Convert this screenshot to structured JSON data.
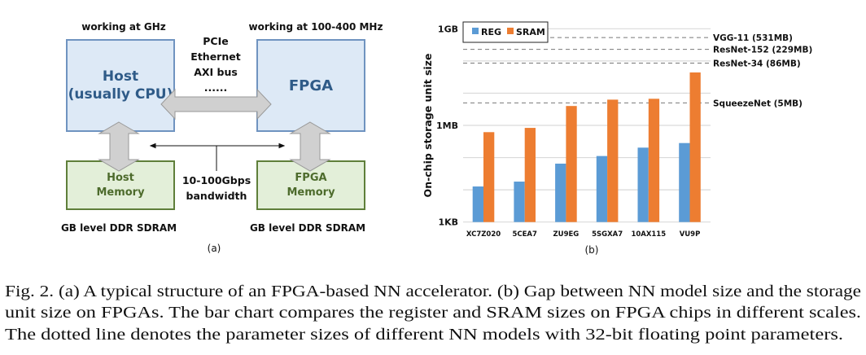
{
  "diagram": {
    "host_freq": "working at GHz",
    "fpga_freq": "working at 100-400 MHz",
    "host_label": [
      "Host",
      "(usually CPU)"
    ],
    "fpga_label": "FPGA",
    "host_memory": [
      "Host",
      "Memory"
    ],
    "fpga_memory": [
      "FPGA",
      "Memory"
    ],
    "interfaces": [
      "PCIe",
      "Ethernet",
      "AXI bus",
      "......"
    ],
    "bandwidth": [
      "10-100Gbps",
      "bandwidth"
    ],
    "host_dram": "GB level DDR SDRAM",
    "fpga_dram": "GB level DDR SDRAM",
    "sublabel": "(a)",
    "colors": {
      "processor_fill": "#dde9f6",
      "processor_border": "#6f93c0",
      "memory_fill": "#e3efd9",
      "memory_border": "#5f7f3a",
      "arrow": "#d0d0d0"
    }
  },
  "chart_data": {
    "type": "bar",
    "ylabel": "On-chip storage unit size",
    "yscale": "log",
    "yunit": "KB",
    "ylim": [
      1,
      1000000
    ],
    "yticks": [
      {
        "value": 1,
        "label": "1KB"
      },
      {
        "value": 1000,
        "label": "1MB"
      },
      {
        "value": 1000000,
        "label": "1GB"
      }
    ],
    "grid": true,
    "legend_position": "top-left",
    "categories": [
      "XC7Z020",
      "5CEA7",
      "ZU9EG",
      "5SGXA7",
      "10AX115",
      "VU9P"
    ],
    "series": [
      {
        "name": "REG",
        "color": "#5b9bd5",
        "values": [
          12.7,
          18,
          65,
          112,
          204,
          283
        ]
      },
      {
        "name": "SRAM",
        "color": "#ed7d31",
        "values": [
          617,
          836,
          4000,
          6300,
          6700,
          44000
        ]
      }
    ],
    "reference_lines": [
      {
        "label": "VGG-11 (531MB)",
        "value": 531000
      },
      {
        "label": "ResNet-152 (229MB)",
        "value": 229000
      },
      {
        "label": "ResNet-34 (86MB)",
        "value": 86000
      },
      {
        "label": "SqueezeNet (5MB)",
        "value": 5000
      }
    ],
    "sublabel": "(b)"
  },
  "caption": [
    "Fig. 2.  (a) A typical structure of an FPGA-based NN accelerator. (b) Gap between NN model size and the storage",
    "unit size on FPGAs. The bar chart compares the register and SRAM sizes on FPGA chips in different scales.",
    "The dotted line denotes the parameter sizes of different NN models with 32-bit floating point parameters."
  ]
}
